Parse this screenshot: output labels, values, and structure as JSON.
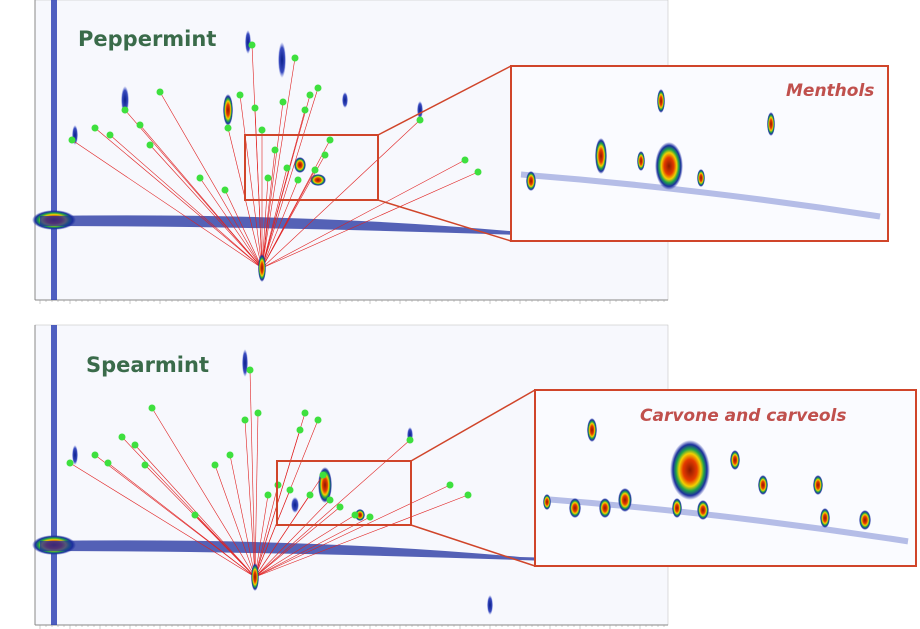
{
  "panels": [
    {
      "label": "Peppermint",
      "inset_label": "Menthols"
    },
    {
      "label": "Spearmint",
      "inset_label": "Carvone and carveols"
    }
  ]
}
